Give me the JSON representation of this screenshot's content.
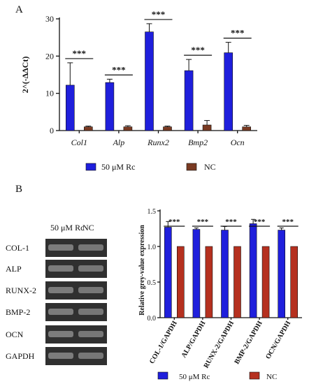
{
  "panel_labels": {
    "a": "A",
    "b": "B"
  },
  "colors": {
    "rc": "#1f1fdc",
    "nc_a": "#7a3a22",
    "nc_b": "#b5301f",
    "blot_band": "#8a8a8a"
  },
  "chart_data": [
    {
      "type": "bar",
      "panel": "A",
      "ylabel": "2^(-ΔΔCt)",
      "ylim": [
        0,
        30
      ],
      "yticks": [
        0,
        10,
        20,
        30
      ],
      "categories": [
        "Col1",
        "Alp",
        "Runx2",
        "Bmp2",
        "Ocn"
      ],
      "series": [
        {
          "name": "50 μM Rc",
          "values": [
            12.2,
            12.9,
            26.5,
            16.1,
            20.9
          ],
          "errors": [
            6.0,
            0.9,
            2.2,
            3.0,
            2.8
          ]
        },
        {
          "name": "NC",
          "values": [
            1.0,
            1.0,
            1.0,
            1.5,
            1.0
          ],
          "errors": [
            0.2,
            0.3,
            0.2,
            1.2,
            0.4
          ]
        }
      ],
      "significance": [
        "***",
        "***",
        "***",
        "***",
        "***"
      ],
      "legend_position": "bottom"
    },
    {
      "type": "bar",
      "panel": "B",
      "ylabel": "Relative grey-value expression",
      "ylim": [
        0,
        1.5
      ],
      "yticks": [
        "0.0",
        "0.5",
        "1.0",
        "1.5"
      ],
      "categories": [
        "COL-1/GAPDH",
        "ALP/GAPDH",
        "RUNX-2/GAPDH",
        "BMP-2/GAPDH",
        "OCN/GAPDH"
      ],
      "series": [
        {
          "name": "50 μM Rc",
          "values": [
            1.27,
            1.24,
            1.23,
            1.32,
            1.23
          ],
          "errors": [
            0.08,
            0.02,
            0.05,
            0.06,
            0.03
          ]
        },
        {
          "name": "NC",
          "values": [
            1.0,
            1.0,
            1.0,
            1.0,
            1.0
          ],
          "errors": [
            0,
            0,
            0,
            0,
            0
          ]
        }
      ],
      "significance": [
        "***",
        "***",
        "***",
        "***",
        "***"
      ],
      "legend_position": "bottom"
    }
  ],
  "western_blot": {
    "lanes": [
      "50 μM Rc",
      "NC"
    ],
    "proteins": [
      "COL-1",
      "ALP",
      "RUNX-2",
      "BMP-2",
      "OCN",
      "GAPDH"
    ]
  }
}
